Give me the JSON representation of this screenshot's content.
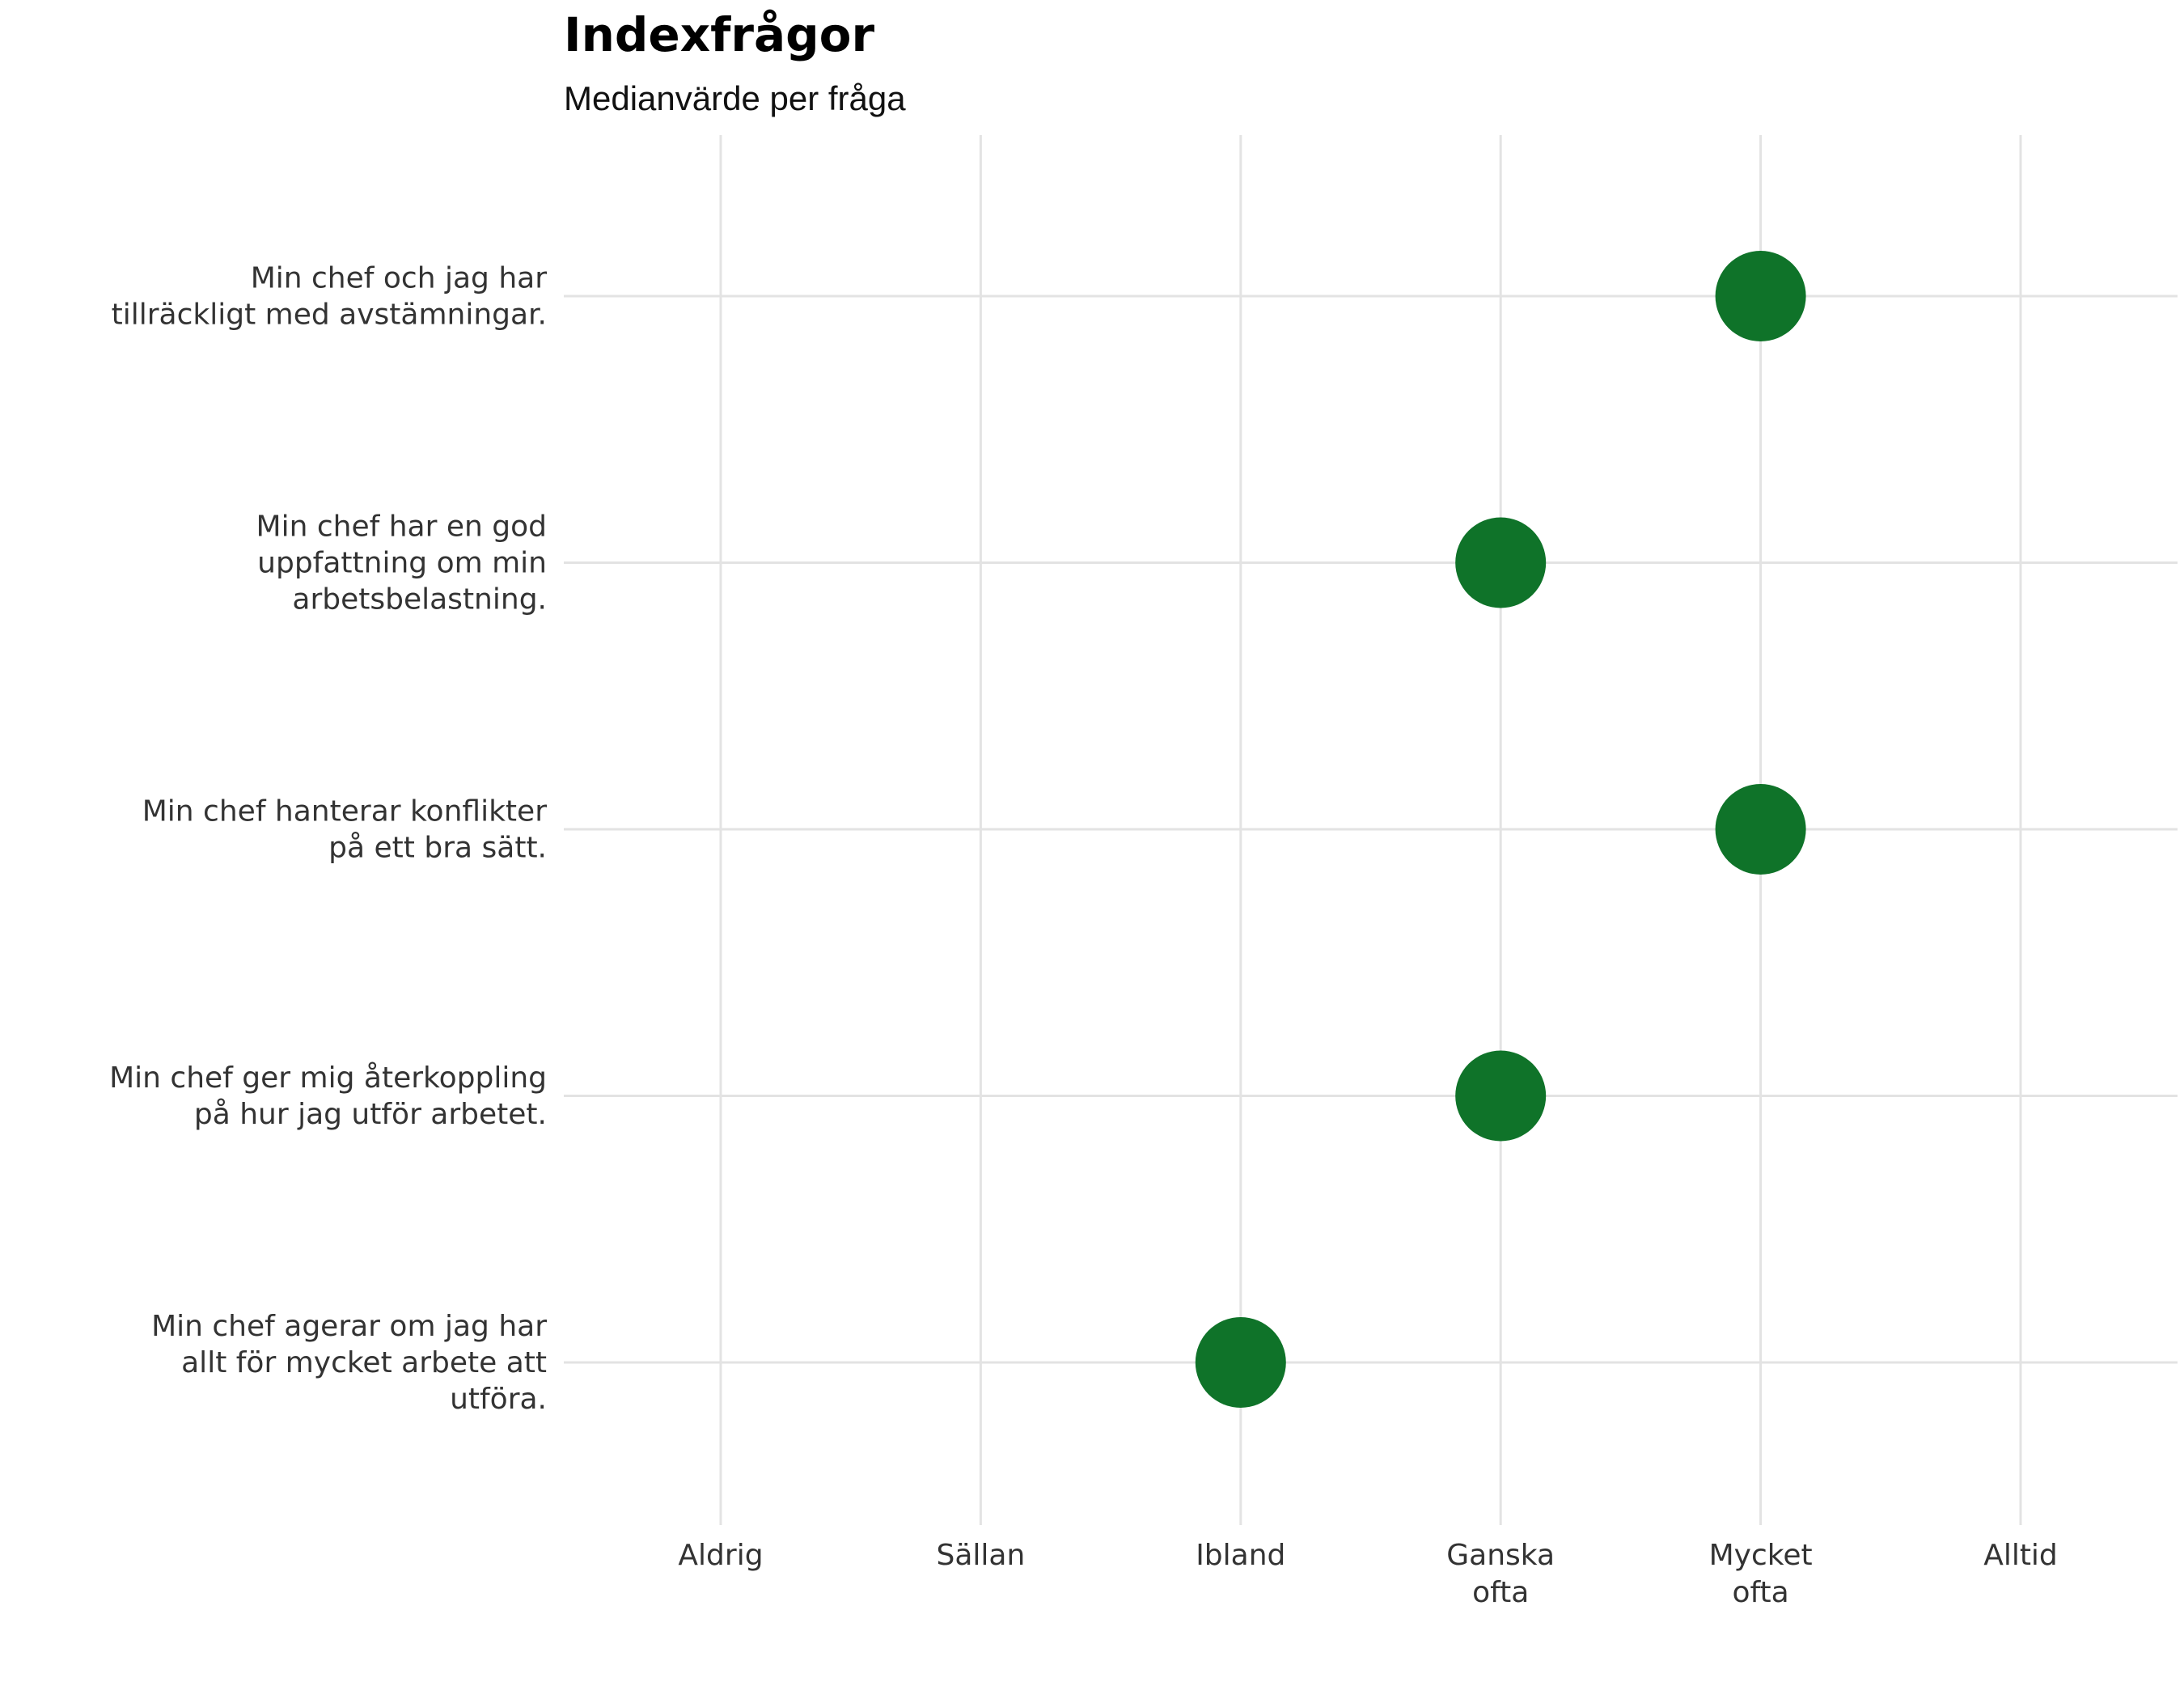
{
  "chart_data": {
    "type": "scatter",
    "title": "Indexfrågor",
    "subtitle": "Medianvärde per fråga",
    "x_categories": [
      {
        "id": "aldrig",
        "lines": [
          "Aldrig"
        ]
      },
      {
        "id": "sallan",
        "lines": [
          "Sällan"
        ]
      },
      {
        "id": "ibland",
        "lines": [
          "Ibland"
        ]
      },
      {
        "id": "ganska-ofta",
        "lines": [
          "Ganska",
          "ofta"
        ]
      },
      {
        "id": "mycket-ofta",
        "lines": [
          "Mycket",
          "ofta"
        ]
      },
      {
        "id": "alltid",
        "lines": [
          "Alltid"
        ]
      }
    ],
    "questions": [
      {
        "lines": [
          "Min chef och jag har",
          "tillräckligt med avstämningar."
        ],
        "value": "Mycket ofta",
        "x_index": 4
      },
      {
        "lines": [
          "Min chef har en god",
          "uppfattning om min",
          "arbetsbelastning."
        ],
        "value": "Ganska ofta",
        "x_index": 3
      },
      {
        "lines": [
          "Min chef hanterar konflikter",
          "på ett bra sätt."
        ],
        "value": "Mycket ofta",
        "x_index": 4
      },
      {
        "lines": [
          "Min chef ger mig återkoppling",
          "på hur jag utför arbetet."
        ],
        "value": "Ganska ofta",
        "x_index": 3
      },
      {
        "lines": [
          "Min chef agerar om jag har",
          "allt för mycket arbete att",
          "utföra."
        ],
        "value": "Ibland",
        "x_index": 2
      }
    ],
    "point_color": "#0f7329",
    "grid": true,
    "legend": "none"
  }
}
